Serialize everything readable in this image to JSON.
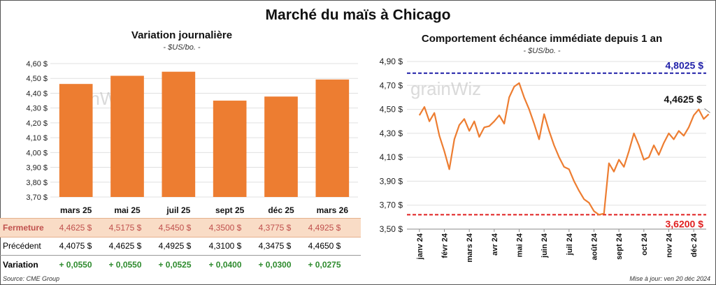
{
  "title": "Marché du maïs à Chicago",
  "source": "Source: CME Group",
  "updated": "Mise à jour: ven 20 déc 2024",
  "watermark": "grainWiz",
  "colors": {
    "bar": "#ed7d31",
    "line": "#ed7d31",
    "upper_ref": "#1f1fa8",
    "lower_ref": "#e02020",
    "grid": "#e0e0e0",
    "fermeture_bg": "#f9dcc6",
    "positive": "#2e8b2e"
  },
  "chart_data": [
    {
      "type": "bar",
      "title": "Variation journalière",
      "unit": "- $US/bo. -",
      "categories": [
        "mars 25",
        "mai 25",
        "juil 25",
        "sept 25",
        "déc 25",
        "mars 26"
      ],
      "values": [
        4.4625,
        4.5175,
        4.545,
        4.35,
        4.3775,
        4.4925
      ],
      "ylim": [
        3.7,
        4.6
      ],
      "yticks": [
        "3,70 $",
        "3,80 $",
        "3,90 $",
        "4,00 $",
        "4,10 $",
        "4,20 $",
        "4,30 $",
        "4,40 $",
        "4,50 $",
        "4,60 $"
      ],
      "grid": true
    },
    {
      "type": "line",
      "title": "Comportement échéance immédiate depuis 1 an",
      "unit": "- $US/bo. -",
      "ylim": [
        3.5,
        4.9
      ],
      "yticks": [
        "3,50 $",
        "3,70 $",
        "3,90 $",
        "4,10 $",
        "4,30 $",
        "4,50 $",
        "4,70 $",
        "4,90 $"
      ],
      "xticks": [
        "janv 24",
        "févr 24",
        "mars 24",
        "avr 24",
        "mai 24",
        "juin 24",
        "juil 24",
        "août 24",
        "sept 24",
        "oct 24",
        "nov 24",
        "déc 24"
      ],
      "x": [
        0,
        0.2,
        0.4,
        0.6,
        0.8,
        1.0,
        1.2,
        1.4,
        1.6,
        1.8,
        2.0,
        2.2,
        2.4,
        2.6,
        2.8,
        3.0,
        3.2,
        3.4,
        3.6,
        3.8,
        4.0,
        4.2,
        4.4,
        4.6,
        4.8,
        5.0,
        5.2,
        5.4,
        5.6,
        5.8,
        6.0,
        6.2,
        6.4,
        6.6,
        6.8,
        7.0,
        7.2,
        7.4,
        7.6,
        7.8,
        8.0,
        8.2,
        8.4,
        8.6,
        8.8,
        9.0,
        9.2,
        9.4,
        9.6,
        9.8,
        10.0,
        10.2,
        10.4,
        10.6,
        10.8,
        11.0,
        11.2,
        11.4,
        11.6
      ],
      "y": [
        4.45,
        4.52,
        4.4,
        4.47,
        4.28,
        4.15,
        4.0,
        4.25,
        4.37,
        4.42,
        4.32,
        4.4,
        4.27,
        4.35,
        4.36,
        4.4,
        4.45,
        4.38,
        4.6,
        4.69,
        4.72,
        4.6,
        4.5,
        4.38,
        4.25,
        4.46,
        4.32,
        4.2,
        4.1,
        4.02,
        4.0,
        3.9,
        3.82,
        3.75,
        3.72,
        3.65,
        3.62,
        3.63,
        4.05,
        3.98,
        4.08,
        4.02,
        4.15,
        4.3,
        4.2,
        4.08,
        4.1,
        4.2,
        4.12,
        4.22,
        4.3,
        4.25,
        4.32,
        4.28,
        4.35,
        4.45,
        4.5,
        4.42,
        4.46
      ],
      "ref_lines": [
        {
          "label": "4,8025 $",
          "value": 4.8025,
          "color": "#1f1fa8"
        },
        {
          "label": "3,6200 $",
          "value": 3.62,
          "color": "#e02020"
        }
      ],
      "last_value_label": "4,4625 $",
      "grid": true
    }
  ],
  "table": {
    "rows": [
      {
        "label": "Fermeture",
        "cells": [
          "4,4625  $",
          "4,5175  $",
          "4,5450  $",
          "4,3500  $",
          "4,3775  $",
          "4,4925  $"
        ]
      },
      {
        "label": "Précédent",
        "cells": [
          "4,4075  $",
          "4,4625  $",
          "4,4925  $",
          "4,3100  $",
          "4,3475  $",
          "4,4650  $"
        ]
      },
      {
        "label": "Variation",
        "cells": [
          "+ 0,0550",
          "+ 0,0550",
          "+ 0,0525",
          "+ 0,0400",
          "+ 0,0300",
          "+ 0,0275"
        ]
      }
    ]
  }
}
